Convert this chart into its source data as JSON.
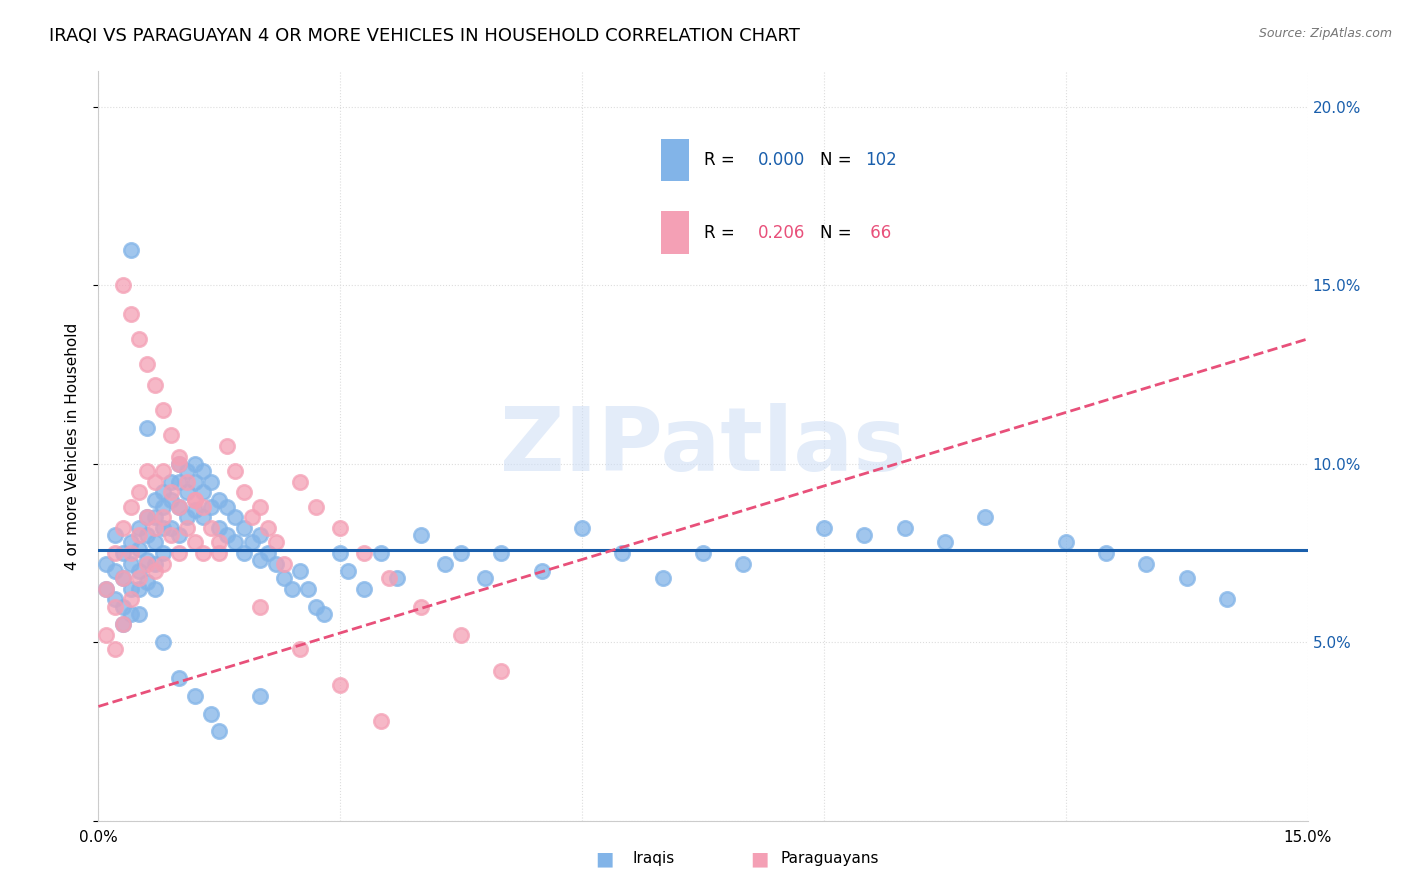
{
  "title": "IRAQI VS PARAGUAYAN 4 OR MORE VEHICLES IN HOUSEHOLD CORRELATION CHART",
  "source": "Source: ZipAtlas.com",
  "ylabel": "4 or more Vehicles in Household",
  "watermark": "ZIPatlas",
  "legend_iraqi_R": "0.000",
  "legend_iraqi_N": "102",
  "legend_para_R": "0.206",
  "legend_para_N": "66",
  "iraqi_scatter_color": "#82b4e8",
  "paraguayan_scatter_color": "#f4a0b5",
  "iraqi_line_color": "#1a5fac",
  "paraguayan_line_color": "#e8507a",
  "background_color": "#ffffff",
  "grid_color": "#dddddd",
  "right_tick_color": "#1a5fac",
  "title_fontsize": 13,
  "axis_fontsize": 11,
  "watermark_color": "#ccddf5",
  "iraqi_x": [
    0.001,
    0.001,
    0.002,
    0.002,
    0.002,
    0.003,
    0.003,
    0.003,
    0.003,
    0.004,
    0.004,
    0.004,
    0.004,
    0.005,
    0.005,
    0.005,
    0.005,
    0.005,
    0.006,
    0.006,
    0.006,
    0.006,
    0.007,
    0.007,
    0.007,
    0.007,
    0.007,
    0.008,
    0.008,
    0.008,
    0.008,
    0.009,
    0.009,
    0.009,
    0.01,
    0.01,
    0.01,
    0.01,
    0.011,
    0.011,
    0.011,
    0.012,
    0.012,
    0.012,
    0.013,
    0.013,
    0.013,
    0.014,
    0.014,
    0.015,
    0.015,
    0.016,
    0.016,
    0.017,
    0.017,
    0.018,
    0.018,
    0.019,
    0.02,
    0.02,
    0.021,
    0.022,
    0.023,
    0.024,
    0.025,
    0.026,
    0.027,
    0.028,
    0.03,
    0.031,
    0.033,
    0.035,
    0.037,
    0.04,
    0.043,
    0.045,
    0.048,
    0.05,
    0.055,
    0.06,
    0.065,
    0.07,
    0.075,
    0.08,
    0.09,
    0.095,
    0.1,
    0.105,
    0.11,
    0.12,
    0.125,
    0.13,
    0.135,
    0.14,
    0.004,
    0.006,
    0.008,
    0.01,
    0.012,
    0.014,
    0.015,
    0.02
  ],
  "iraqi_y": [
    0.072,
    0.065,
    0.08,
    0.07,
    0.062,
    0.075,
    0.068,
    0.06,
    0.055,
    0.078,
    0.072,
    0.065,
    0.058,
    0.082,
    0.076,
    0.07,
    0.065,
    0.058,
    0.085,
    0.08,
    0.073,
    0.067,
    0.09,
    0.085,
    0.078,
    0.072,
    0.065,
    0.092,
    0.088,
    0.082,
    0.075,
    0.095,
    0.09,
    0.082,
    0.1,
    0.095,
    0.088,
    0.08,
    0.098,
    0.092,
    0.085,
    0.1,
    0.095,
    0.087,
    0.098,
    0.092,
    0.085,
    0.095,
    0.088,
    0.09,
    0.082,
    0.088,
    0.08,
    0.085,
    0.078,
    0.082,
    0.075,
    0.078,
    0.08,
    0.073,
    0.075,
    0.072,
    0.068,
    0.065,
    0.07,
    0.065,
    0.06,
    0.058,
    0.075,
    0.07,
    0.065,
    0.075,
    0.068,
    0.08,
    0.072,
    0.075,
    0.068,
    0.075,
    0.07,
    0.082,
    0.075,
    0.068,
    0.075,
    0.072,
    0.082,
    0.08,
    0.082,
    0.078,
    0.085,
    0.078,
    0.075,
    0.072,
    0.068,
    0.062,
    0.16,
    0.11,
    0.05,
    0.04,
    0.035,
    0.03,
    0.025,
    0.035
  ],
  "para_x": [
    0.001,
    0.001,
    0.002,
    0.002,
    0.002,
    0.003,
    0.003,
    0.003,
    0.004,
    0.004,
    0.004,
    0.005,
    0.005,
    0.005,
    0.006,
    0.006,
    0.006,
    0.007,
    0.007,
    0.007,
    0.008,
    0.008,
    0.008,
    0.009,
    0.009,
    0.01,
    0.01,
    0.01,
    0.011,
    0.011,
    0.012,
    0.012,
    0.013,
    0.013,
    0.014,
    0.015,
    0.016,
    0.017,
    0.018,
    0.019,
    0.02,
    0.021,
    0.022,
    0.023,
    0.025,
    0.027,
    0.03,
    0.033,
    0.036,
    0.04,
    0.045,
    0.05,
    0.003,
    0.004,
    0.005,
    0.006,
    0.007,
    0.008,
    0.009,
    0.01,
    0.012,
    0.015,
    0.02,
    0.025,
    0.03,
    0.035
  ],
  "para_y": [
    0.065,
    0.052,
    0.075,
    0.06,
    0.048,
    0.082,
    0.068,
    0.055,
    0.088,
    0.075,
    0.062,
    0.092,
    0.08,
    0.068,
    0.098,
    0.085,
    0.072,
    0.095,
    0.082,
    0.07,
    0.098,
    0.085,
    0.072,
    0.092,
    0.08,
    0.1,
    0.088,
    0.075,
    0.095,
    0.082,
    0.09,
    0.078,
    0.088,
    0.075,
    0.082,
    0.078,
    0.105,
    0.098,
    0.092,
    0.085,
    0.088,
    0.082,
    0.078,
    0.072,
    0.095,
    0.088,
    0.082,
    0.075,
    0.068,
    0.06,
    0.052,
    0.042,
    0.15,
    0.142,
    0.135,
    0.128,
    0.122,
    0.115,
    0.108,
    0.102,
    0.09,
    0.075,
    0.06,
    0.048,
    0.038,
    0.028
  ],
  "xlim": [
    0.0,
    0.15
  ],
  "ylim": [
    0.0,
    0.21
  ],
  "x_ticks": [
    0.0,
    0.03,
    0.06,
    0.09,
    0.12,
    0.15
  ],
  "x_tick_labels": [
    "0.0%",
    "",
    "",
    "",
    "",
    "15.0%"
  ],
  "y_ticks": [
    0.0,
    0.05,
    0.1,
    0.15,
    0.2
  ],
  "y_tick_labels_right": [
    "",
    "5.0%",
    "10.0%",
    "15.0%",
    "20.0%"
  ]
}
